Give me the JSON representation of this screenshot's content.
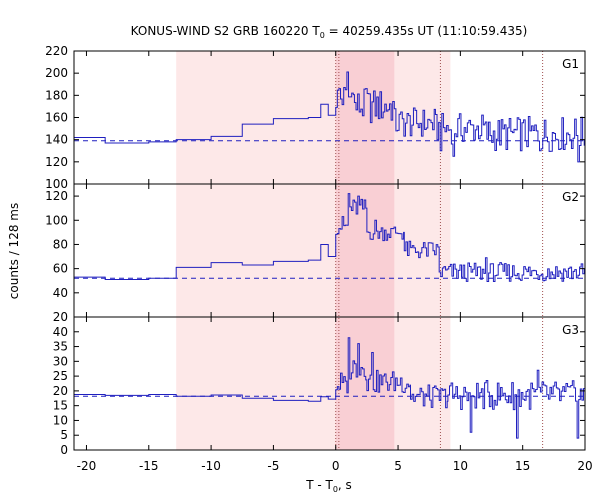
{
  "chart_data": {
    "type": "line",
    "title": {
      "pre": "KONUS-WIND S2 GRB 160220 T",
      "sub": "0",
      "post": " = 40259.435s UT (11:10:59.435)"
    },
    "xlabel": {
      "pre": "T - T",
      "sub": "0",
      "post": ", s"
    },
    "ylabel": "counts / 128 ms",
    "xlim": [
      -21,
      20
    ],
    "xticks": [
      -20,
      -15,
      -10,
      -5,
      0,
      5,
      10,
      15,
      20
    ],
    "grid": false,
    "colors": {
      "lightcurve": "#1f1fbf",
      "background_line": "#1f1fbf",
      "outer_interval": "#fde8e8",
      "inner_interval": "#f9cfd4",
      "vline": "#a05050"
    },
    "shaded_intervals": [
      {
        "range": [
          -12.8,
          9.2
        ],
        "level": "outer"
      },
      {
        "range": [
          0.0,
          4.7
        ],
        "level": "inner"
      }
    ],
    "vlines": [
      0.0,
      0.25,
      8.4,
      16.6
    ],
    "panels": [
      {
        "name": "G1",
        "ylim": [
          100,
          220
        ],
        "yticks": [
          100,
          120,
          140,
          160,
          180,
          200,
          220
        ],
        "background_level": 139,
        "pre_steps": [
          [
            -21,
            -18.5,
            142
          ],
          [
            -18.5,
            -15,
            137
          ],
          [
            -15,
            -12.8,
            138
          ],
          [
            -12.8,
            -10,
            140
          ],
          [
            -10,
            -7.5,
            143
          ],
          [
            -7.5,
            -5,
            154
          ],
          [
            -5,
            -2.2,
            159
          ],
          [
            -2.2,
            -1.2,
            160
          ],
          [
            -1.2,
            -0.6,
            172
          ],
          [
            -0.6,
            0,
            162
          ]
        ],
        "fast": [
          {
            "range": [
              0,
              1.5
            ],
            "mean": 178,
            "amp": 14
          },
          {
            "range": [
              1.5,
              4.7
            ],
            "mean": 170,
            "amp": 16
          },
          {
            "range": [
              4.7,
              8.0
            ],
            "mean": 155,
            "amp": 14
          },
          {
            "range": [
              8.0,
              12.0
            ],
            "mean": 150,
            "amp": 14
          },
          {
            "range": [
              12.0,
              20.0
            ],
            "mean": 145,
            "amp": 16
          }
        ],
        "peaks": [
          [
            0.9,
            201
          ],
          [
            1.3,
            182
          ],
          [
            0.35,
            186
          ],
          [
            2.4,
            186
          ],
          [
            8.5,
            130
          ],
          [
            9.5,
            125
          ],
          [
            16.4,
            130
          ],
          [
            19.5,
            120
          ]
        ]
      },
      {
        "name": "G2",
        "ylim": [
          20,
          130
        ],
        "yticks": [
          20,
          40,
          60,
          80,
          100,
          120
        ],
        "background_level": 52,
        "pre_steps": [
          [
            -21,
            -18.5,
            53
          ],
          [
            -18.5,
            -15,
            51
          ],
          [
            -15,
            -12.8,
            52
          ],
          [
            -12.8,
            -10,
            61
          ],
          [
            -10,
            -7.5,
            65
          ],
          [
            -7.5,
            -5,
            63
          ],
          [
            -5,
            -2.2,
            66
          ],
          [
            -2.2,
            -1.2,
            67
          ],
          [
            -1.2,
            -0.6,
            80
          ],
          [
            -0.6,
            0,
            70
          ]
        ],
        "fast": [
          {
            "range": [
              0,
              1.0
            ],
            "mean": 95,
            "amp": 7
          },
          {
            "range": [
              1.0,
              2.5
            ],
            "mean": 110,
            "amp": 8
          },
          {
            "range": [
              2.5,
              5.5
            ],
            "mean": 90,
            "amp": 7
          },
          {
            "range": [
              5.5,
              8.3
            ],
            "mean": 75,
            "amp": 8
          },
          {
            "range": [
              8.3,
              20.0
            ],
            "mean": 57,
            "amp": 8
          }
        ],
        "peaks": [
          [
            1.1,
            122
          ],
          [
            1.8,
            120
          ],
          [
            0.6,
            103
          ],
          [
            3.2,
            100
          ],
          [
            12.1,
            69
          ]
        ]
      },
      {
        "name": "G3",
        "ylim": [
          0,
          45
        ],
        "yticks": [
          0,
          5,
          10,
          15,
          20,
          25,
          30,
          35,
          40
        ],
        "background_level": 18.2,
        "pre_steps": [
          [
            -21,
            -18.5,
            18.8
          ],
          [
            -18.5,
            -15,
            18.5
          ],
          [
            -15,
            -12.8,
            18.8
          ],
          [
            -12.8,
            -10,
            18.2
          ],
          [
            -10,
            -7.5,
            18.6
          ],
          [
            -7.5,
            -5,
            17.5
          ],
          [
            -5,
            -2.2,
            16.8
          ],
          [
            -2.2,
            -1.2,
            16.5
          ],
          [
            -1.2,
            -0.6,
            18.0
          ],
          [
            -0.6,
            0,
            17.2
          ]
        ],
        "fast": [
          {
            "range": [
              0,
              1.0
            ],
            "mean": 22,
            "amp": 3.5
          },
          {
            "range": [
              1.0,
              2.5
            ],
            "mean": 28,
            "amp": 4.5
          },
          {
            "range": [
              2.5,
              6.0
            ],
            "mean": 23,
            "amp": 4.0
          },
          {
            "range": [
              6.0,
              9.0
            ],
            "mean": 18,
            "amp": 4.0
          },
          {
            "range": [
              9.0,
              20.0
            ],
            "mean": 18.5,
            "amp": 5.0
          }
        ],
        "peaks": [
          [
            1.1,
            38
          ],
          [
            1.8,
            36
          ],
          [
            0.4,
            26
          ],
          [
            3.0,
            33
          ],
          [
            10.8,
            6
          ],
          [
            14.6,
            4
          ],
          [
            16.2,
            27
          ],
          [
            19.4,
            4
          ]
        ]
      }
    ]
  }
}
